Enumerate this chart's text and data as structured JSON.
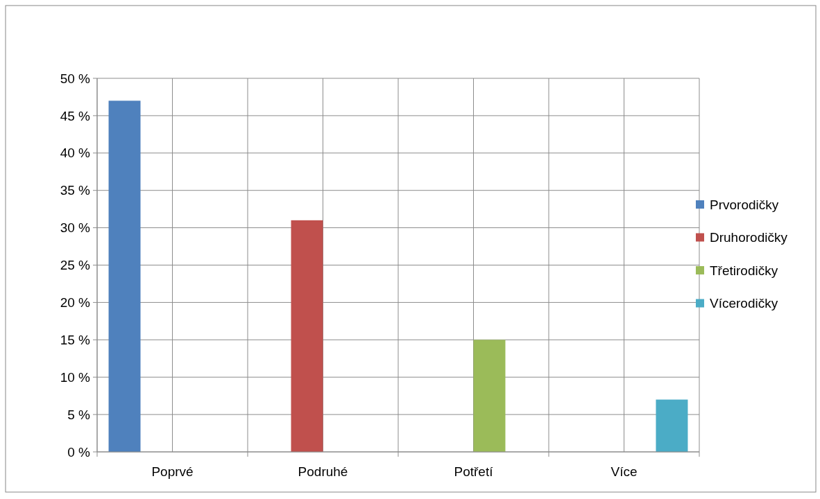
{
  "chart_data": {
    "type": "bar",
    "categories": [
      "Poprvé",
      "Podruhé",
      "Potřetí",
      "Více"
    ],
    "series": [
      {
        "name": "Prvorodičky",
        "color": "#4f81bd",
        "values": [
          47,
          null,
          null,
          null
        ]
      },
      {
        "name": "Druhorodičky",
        "color": "#c0504d",
        "values": [
          null,
          31,
          null,
          null
        ]
      },
      {
        "name": "Třetirodičky",
        "color": "#9bbb59",
        "values": [
          null,
          null,
          15,
          null
        ]
      },
      {
        "name": "Vícerodičky",
        "color": "#4bacc6",
        "values": [
          null,
          null,
          null,
          7
        ]
      }
    ],
    "ylim": [
      0,
      50
    ],
    "yticks": [
      {
        "value": 0,
        "label": "0 %"
      },
      {
        "value": 5,
        "label": "5 %"
      },
      {
        "value": 10,
        "label": "10 %"
      },
      {
        "value": 15,
        "label": "15 %"
      },
      {
        "value": 20,
        "label": "20 %"
      },
      {
        "value": 25,
        "label": "25 %"
      },
      {
        "value": 30,
        "label": "30 %"
      },
      {
        "value": 35,
        "label": "35 %"
      },
      {
        "value": 40,
        "label": "40 %"
      },
      {
        "value": 45,
        "label": "45 %"
      },
      {
        "value": 50,
        "label": "50 %"
      }
    ],
    "grid": true,
    "legend": "right"
  }
}
